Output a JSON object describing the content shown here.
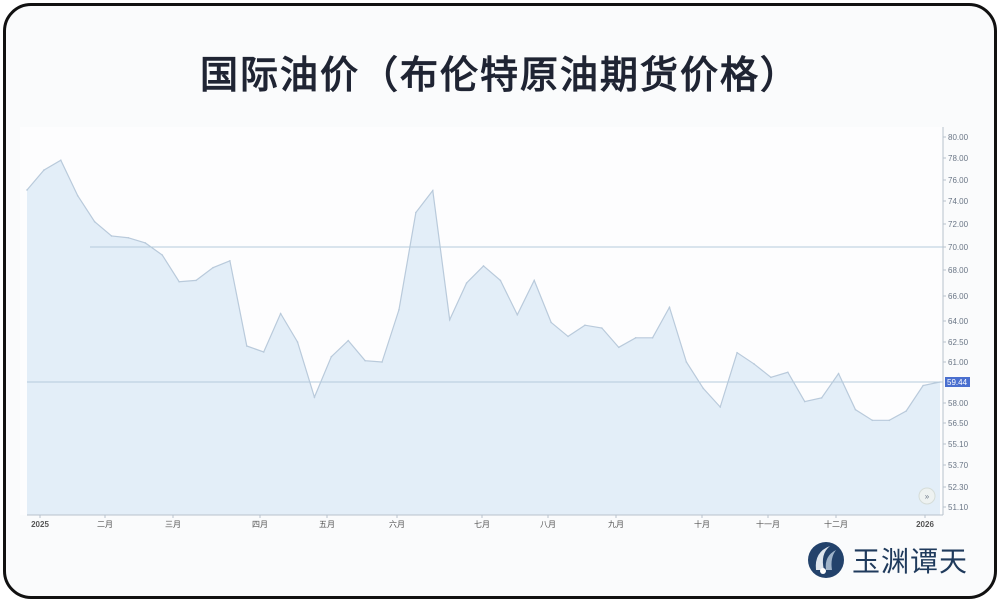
{
  "title": "国际油价（布伦特原油期货价格）",
  "logo_text": "玉渊谭天",
  "chart_data": {
    "type": "area",
    "title": "国际油价（布伦特原油期货价格）",
    "xlabel": "",
    "ylabel": "",
    "x_tick_labels": [
      "2025",
      "二月",
      "三月",
      "四月",
      "五月",
      "六月",
      "七月",
      "八月",
      "九月",
      "十月",
      "十一月",
      "十二月",
      "2026"
    ],
    "y_tick_labels": [
      "80.00",
      "78.00",
      "76.00",
      "74.00",
      "72.00",
      "70.00",
      "68.00",
      "66.00",
      "64.00",
      "62.50",
      "61.00",
      "58.00",
      "56.50",
      "55.10",
      "53.70",
      "52.30",
      "51.10"
    ],
    "ylim": [
      51.1,
      80.0
    ],
    "grid": false,
    "reference_lines": [
      70.0,
      59.44
    ],
    "last_value_label": "59.44",
    "values": [
      75.05,
      76.9,
      77.8,
      74.5,
      72.2,
      70.96,
      70.8,
      70.35,
      69.3,
      67.1,
      67.2,
      68.2,
      68.8,
      62.2,
      61.75,
      64.6,
      62.5,
      58.4,
      61.4,
      62.6,
      61.1,
      61.0,
      64.9,
      73.0,
      75.0,
      64.1,
      67.0,
      68.35,
      67.2,
      64.5,
      67.2,
      63.9,
      62.9,
      63.7,
      63.5,
      62.1,
      62.8,
      62.8,
      65.1,
      61.0,
      59.0,
      57.7,
      61.7,
      60.85,
      59.8,
      60.2,
      58.1,
      58.35,
      60.1,
      57.5,
      56.7,
      56.7,
      57.4,
      59.2,
      59.44
    ],
    "colors": {
      "fill": "#e3eef8",
      "line": "#b9cadb",
      "ref_line": "#b5cbdc",
      "badge": "#4a6fcf",
      "title": "#1f2433"
    }
  }
}
